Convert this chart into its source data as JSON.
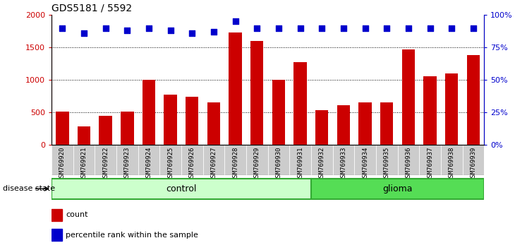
{
  "title": "GDS5181 / 5592",
  "samples": [
    "GSM769920",
    "GSM769921",
    "GSM769922",
    "GSM769923",
    "GSM769924",
    "GSM769925",
    "GSM769926",
    "GSM769927",
    "GSM769928",
    "GSM769929",
    "GSM769930",
    "GSM769931",
    "GSM769932",
    "GSM769933",
    "GSM769934",
    "GSM769935",
    "GSM769936",
    "GSM769937",
    "GSM769938",
    "GSM769939"
  ],
  "counts": [
    510,
    290,
    450,
    510,
    1005,
    780,
    740,
    660,
    1730,
    1600,
    1005,
    1280,
    535,
    615,
    660,
    655,
    1465,
    1060,
    1105,
    1385
  ],
  "percentiles": [
    90,
    86,
    90,
    88,
    90,
    88,
    86,
    87,
    95,
    90,
    90,
    90,
    90,
    90,
    90,
    90,
    90,
    90,
    90,
    90
  ],
  "control_count": 12,
  "glioma_count": 8,
  "bar_color": "#cc0000",
  "dot_color": "#0000cc",
  "control_color": "#ccffcc",
  "glioma_color": "#55dd55",
  "tick_bg_color": "#cccccc",
  "ylim_left": [
    0,
    2000
  ],
  "ylim_right": [
    0,
    100
  ],
  "yticks_left": [
    0,
    500,
    1000,
    1500,
    2000
  ],
  "yticks_right": [
    0,
    25,
    50,
    75,
    100
  ],
  "yticklabels_right": [
    "0%",
    "25%",
    "50%",
    "75%",
    "100%"
  ],
  "grid_values": [
    500,
    1000,
    1500
  ],
  "legend_count_label": "count",
  "legend_pct_label": "percentile rank within the sample",
  "disease_label": "disease state",
  "control_label": "control",
  "glioma_label": "glioma"
}
